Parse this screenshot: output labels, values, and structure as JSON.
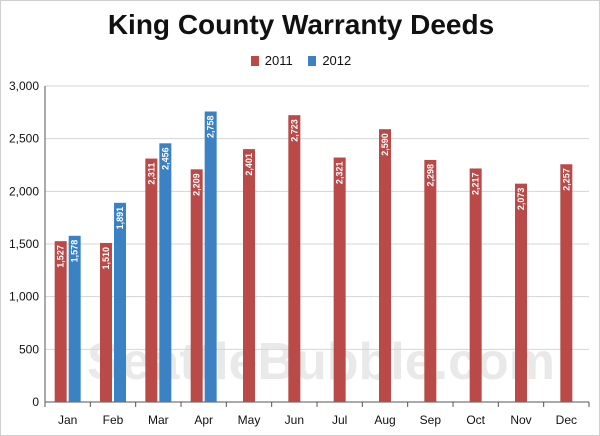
{
  "chart_data": {
    "type": "bar",
    "title": "King County Warranty Deeds",
    "categories": [
      "Jan",
      "Feb",
      "Mar",
      "Apr",
      "May",
      "Jun",
      "Jul",
      "Aug",
      "Sep",
      "Oct",
      "Nov",
      "Dec"
    ],
    "series": [
      {
        "name": "2011",
        "color": "#b94a48",
        "values": [
          1527,
          1510,
          2311,
          2209,
          2401,
          2723,
          2321,
          2590,
          2298,
          2217,
          2073,
          2257
        ]
      },
      {
        "name": "2012",
        "color": "#3b82c4",
        "values": [
          1578,
          1891,
          2456,
          2758,
          null,
          null,
          null,
          null,
          null,
          null,
          null,
          null
        ]
      }
    ],
    "ylim": [
      0,
      3000
    ],
    "yticks": [
      0,
      500,
      1000,
      1500,
      2000,
      2500,
      3000
    ],
    "ytick_labels": [
      "0",
      "500",
      "1,000",
      "1,500",
      "2,000",
      "2,500",
      "3,000"
    ],
    "grid": true,
    "legend": "top-center",
    "watermark": "SeattleBubble.com"
  }
}
